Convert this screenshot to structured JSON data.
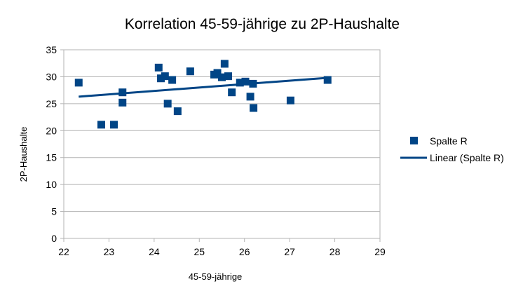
{
  "chart_data": {
    "type": "scatter",
    "title": "Korrelation 45-59-jährige zu 2P-Haushalte",
    "xlabel": "45-59-jährige",
    "ylabel": "2P-Haushalte",
    "xlim": [
      22,
      29
    ],
    "ylim": [
      0,
      35
    ],
    "xticks": [
      22,
      23,
      24,
      25,
      26,
      27,
      28,
      29
    ],
    "yticks": [
      0,
      5,
      10,
      15,
      20,
      25,
      30,
      35
    ],
    "grid": "horizontal",
    "legend_position": "right",
    "series": [
      {
        "name": "Spalte R",
        "color": "#004586",
        "marker": "square",
        "points": [
          {
            "x": 22.33,
            "y": 28.9
          },
          {
            "x": 22.83,
            "y": 21.1
          },
          {
            "x": 23.11,
            "y": 21.1
          },
          {
            "x": 23.3,
            "y": 27.1
          },
          {
            "x": 23.3,
            "y": 25.2
          },
          {
            "x": 24.1,
            "y": 31.7
          },
          {
            "x": 24.15,
            "y": 29.7
          },
          {
            "x": 24.24,
            "y": 30.1
          },
          {
            "x": 24.3,
            "y": 25.0
          },
          {
            "x": 24.4,
            "y": 29.4
          },
          {
            "x": 24.52,
            "y": 23.6
          },
          {
            "x": 24.8,
            "y": 31.0
          },
          {
            "x": 25.33,
            "y": 30.4
          },
          {
            "x": 25.4,
            "y": 30.7
          },
          {
            "x": 25.5,
            "y": 29.9
          },
          {
            "x": 25.56,
            "y": 32.4
          },
          {
            "x": 25.64,
            "y": 30.1
          },
          {
            "x": 25.72,
            "y": 27.1
          },
          {
            "x": 25.9,
            "y": 28.9
          },
          {
            "x": 26.02,
            "y": 29.1
          },
          {
            "x": 26.13,
            "y": 26.3
          },
          {
            "x": 26.19,
            "y": 28.7
          },
          {
            "x": 26.2,
            "y": 24.2
          },
          {
            "x": 27.02,
            "y": 25.6
          },
          {
            "x": 27.84,
            "y": 29.4
          }
        ]
      },
      {
        "name": "Linear (Spalte R)",
        "color": "#004586",
        "type": "line",
        "points": [
          {
            "x": 22.33,
            "y": 26.3
          },
          {
            "x": 27.84,
            "y": 29.8
          }
        ]
      }
    ]
  }
}
